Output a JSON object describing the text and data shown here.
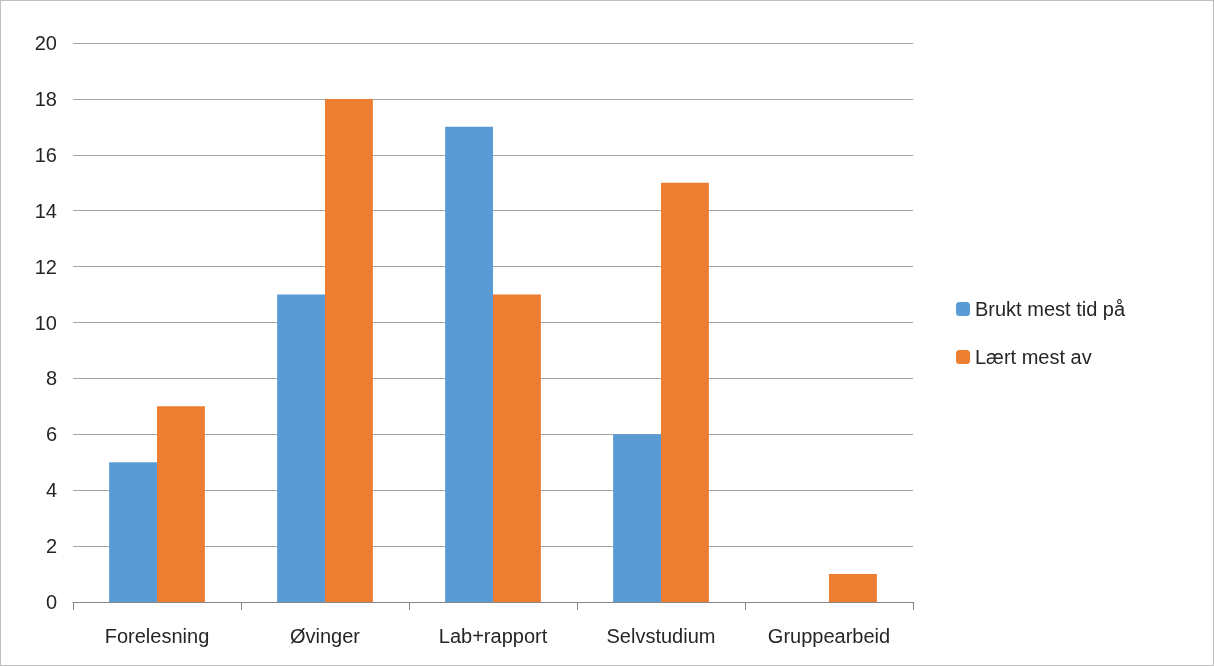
{
  "chart_data": {
    "type": "bar",
    "categories": [
      "Forelesning",
      "Øvinger",
      "Lab+rapport",
      "Selvstudium",
      "Gruppearbeid"
    ],
    "series": [
      {
        "name": "Brukt mest tid på",
        "color": "#5b9bd5",
        "values": [
          5,
          11,
          17,
          6,
          0
        ]
      },
      {
        "name": "Lært mest av",
        "color": "#ed7d31",
        "values": [
          7,
          18,
          11,
          15,
          1
        ]
      }
    ],
    "ylim": [
      0,
      20
    ],
    "yticks": [
      0,
      2,
      4,
      6,
      8,
      10,
      12,
      14,
      16,
      18,
      20
    ],
    "grid": "y",
    "legend": "right"
  }
}
